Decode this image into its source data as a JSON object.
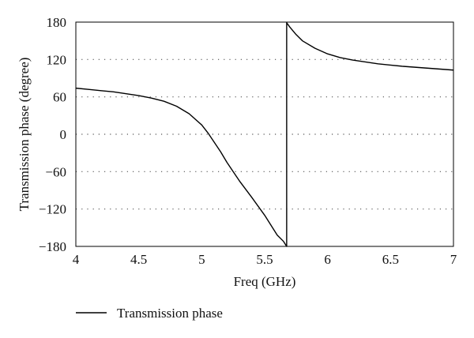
{
  "chart_data": {
    "type": "line",
    "xlabel": "Freq (GHz)",
    "ylabel": "Transmission phase (degree)",
    "xlim": [
      4,
      7
    ],
    "ylim": [
      -180,
      180
    ],
    "x_ticks": [
      4,
      4.5,
      5,
      5.5,
      6,
      6.5,
      7
    ],
    "x_tick_labels": [
      "4",
      "4.5",
      "5",
      "5.5",
      "6",
      "6.5",
      "7"
    ],
    "y_ticks": [
      -180,
      -120,
      -60,
      0,
      60,
      120,
      180
    ],
    "y_tick_labels": [
      "−180",
      "−120",
      "−60",
      "0",
      "60",
      "120",
      "180"
    ],
    "y_grid": "dotted",
    "legend_position": "bottom-left",
    "series": [
      {
        "name": "Transmission phase",
        "color": "#000000",
        "x": [
          4.0,
          4.1,
          4.2,
          4.3,
          4.4,
          4.5,
          4.6,
          4.7,
          4.8,
          4.9,
          5.0,
          5.05,
          5.1,
          5.15,
          5.2,
          5.25,
          5.3,
          5.4,
          5.5,
          5.55,
          5.6,
          5.65,
          5.675,
          5.675,
          5.7,
          5.75,
          5.8,
          5.9,
          6.0,
          6.1,
          6.2,
          6.4,
          6.5,
          6.6,
          6.8,
          7.0
        ],
        "y": [
          74,
          72,
          70,
          68,
          65,
          62,
          58,
          53,
          45,
          33,
          15,
          2,
          -13,
          -28,
          -45,
          -60,
          -75,
          -102,
          -130,
          -146,
          -162,
          -172,
          -180,
          179,
          172,
          160,
          150,
          138,
          129,
          123,
          119,
          113,
          111,
          109,
          106,
          103
        ]
      }
    ]
  }
}
